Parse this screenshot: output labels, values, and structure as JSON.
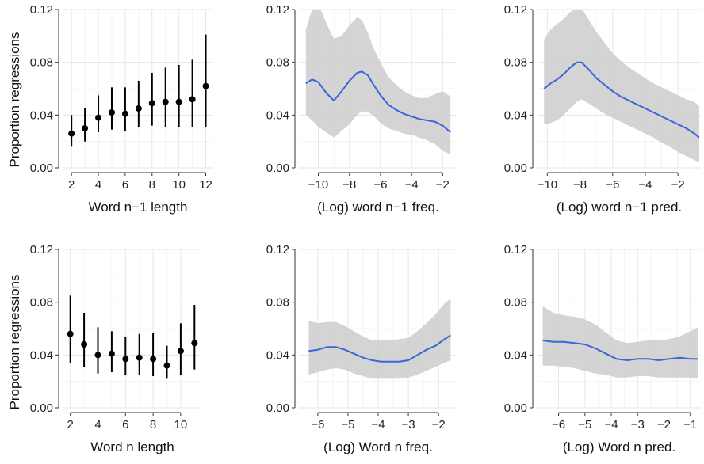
{
  "ylabel": "Proportion regressions",
  "chart_data": [
    {
      "type": "scatter",
      "xlabel": "Word n−1 length",
      "ylabel": "Proportion regressions",
      "xlim": [
        1.4,
        12.5
      ],
      "ylim": [
        0,
        0.12
      ],
      "xticks": [
        2,
        4,
        6,
        8,
        10,
        12
      ],
      "xtick_labels": [
        "2",
        "4",
        "6",
        "8",
        "10",
        "12"
      ],
      "yticks": [
        0,
        0.04,
        0.08,
        0.12
      ],
      "ytick_labels": [
        "0.00",
        "0.04",
        "0.08",
        "0.12"
      ],
      "grid": true,
      "points": [
        {
          "x": 2,
          "y": 0.026,
          "lo": 0.016,
          "hi": 0.04
        },
        {
          "x": 3,
          "y": 0.03,
          "lo": 0.02,
          "hi": 0.045
        },
        {
          "x": 4,
          "y": 0.038,
          "lo": 0.027,
          "hi": 0.055
        },
        {
          "x": 5,
          "y": 0.042,
          "lo": 0.029,
          "hi": 0.061
        },
        {
          "x": 6,
          "y": 0.041,
          "lo": 0.028,
          "hi": 0.061
        },
        {
          "x": 7,
          "y": 0.045,
          "lo": 0.031,
          "hi": 0.066
        },
        {
          "x": 8,
          "y": 0.049,
          "lo": 0.032,
          "hi": 0.072
        },
        {
          "x": 9,
          "y": 0.05,
          "lo": 0.031,
          "hi": 0.076
        },
        {
          "x": 10,
          "y": 0.05,
          "lo": 0.031,
          "hi": 0.078
        },
        {
          "x": 11,
          "y": 0.052,
          "lo": 0.031,
          "hi": 0.082
        },
        {
          "x": 12,
          "y": 0.062,
          "lo": 0.031,
          "hi": 0.101
        }
      ]
    },
    {
      "type": "line",
      "xlabel": "(Log) word n−1 freq.",
      "xlim": [
        -11.2,
        -1.1
      ],
      "ylim": [
        0,
        0.12
      ],
      "xticks": [
        -10,
        -8,
        -6,
        -4,
        -2
      ],
      "xtick_labels": [
        "−10",
        "−8",
        "−6",
        "−4",
        "−2"
      ],
      "yticks": [
        0,
        0.04,
        0.08,
        0.12
      ],
      "ytick_labels": [
        "0.00",
        "0.04",
        "0.08",
        "0.12"
      ],
      "grid": true,
      "line_color": "#3a66d8",
      "band_color": "#cccccc",
      "x": [
        -10.8,
        -10.4,
        -10.0,
        -9.5,
        -9.0,
        -8.5,
        -8.0,
        -7.5,
        -7.2,
        -6.8,
        -6.5,
        -6.0,
        -5.5,
        -5.0,
        -4.5,
        -4.0,
        -3.5,
        -3.0,
        -2.5,
        -2.0,
        -1.5
      ],
      "y": [
        0.064,
        0.067,
        0.065,
        0.057,
        0.051,
        0.058,
        0.066,
        0.072,
        0.073,
        0.07,
        0.064,
        0.055,
        0.048,
        0.044,
        0.041,
        0.039,
        0.037,
        0.036,
        0.035,
        0.032,
        0.027
      ],
      "hi": [
        0.105,
        0.12,
        0.125,
        0.11,
        0.098,
        0.1,
        0.108,
        0.114,
        0.112,
        0.102,
        0.092,
        0.08,
        0.069,
        0.063,
        0.058,
        0.055,
        0.053,
        0.053,
        0.056,
        0.058,
        0.054
      ],
      "lo": [
        0.04,
        0.036,
        0.031,
        0.027,
        0.023,
        0.028,
        0.033,
        0.04,
        0.043,
        0.042,
        0.04,
        0.034,
        0.03,
        0.028,
        0.026,
        0.025,
        0.023,
        0.021,
        0.018,
        0.013,
        0.01
      ]
    },
    {
      "type": "line",
      "xlabel": "(Log) word n−1 pred.",
      "xlim": [
        -10.6,
        -0.6
      ],
      "ylim": [
        0,
        0.12
      ],
      "xticks": [
        -10,
        -8,
        -6,
        -4,
        -2
      ],
      "xtick_labels": [
        "−10",
        "−8",
        "−6",
        "−4",
        "−2"
      ],
      "yticks": [
        0,
        0.04,
        0.08,
        0.12
      ],
      "ytick_labels": [
        "0.00",
        "0.04",
        "0.08",
        "0.12"
      ],
      "grid": true,
      "line_color": "#3a66d8",
      "band_color": "#cccccc",
      "x": [
        -10.2,
        -9.8,
        -9.4,
        -9.0,
        -8.6,
        -8.2,
        -7.9,
        -7.5,
        -7.0,
        -6.5,
        -6.0,
        -5.5,
        -5.0,
        -4.5,
        -4.0,
        -3.5,
        -3.0,
        -2.5,
        -2.0,
        -1.5,
        -1.0,
        -0.7
      ],
      "y": [
        0.06,
        0.064,
        0.067,
        0.071,
        0.076,
        0.08,
        0.08,
        0.075,
        0.068,
        0.063,
        0.058,
        0.054,
        0.051,
        0.048,
        0.045,
        0.042,
        0.039,
        0.036,
        0.033,
        0.03,
        0.026,
        0.023
      ],
      "hi": [
        0.097,
        0.105,
        0.109,
        0.113,
        0.118,
        0.121,
        0.121,
        0.113,
        0.103,
        0.095,
        0.087,
        0.081,
        0.076,
        0.072,
        0.068,
        0.064,
        0.061,
        0.058,
        0.055,
        0.052,
        0.05,
        0.047
      ],
      "lo": [
        0.033,
        0.034,
        0.036,
        0.04,
        0.045,
        0.05,
        0.052,
        0.049,
        0.045,
        0.041,
        0.038,
        0.035,
        0.032,
        0.029,
        0.026,
        0.023,
        0.019,
        0.016,
        0.012,
        0.009,
        0.006,
        0.004
      ]
    },
    {
      "type": "scatter",
      "xlabel": "Word n length",
      "ylabel": "Proportion regressions",
      "xlim": [
        1.5,
        11.5
      ],
      "ylim": [
        0,
        0.12
      ],
      "xticks": [
        2,
        4,
        6,
        8,
        10
      ],
      "xtick_labels": [
        "2",
        "4",
        "6",
        "8",
        "10"
      ],
      "yticks": [
        0,
        0.04,
        0.08,
        0.12
      ],
      "ytick_labels": [
        "0.00",
        "0.04",
        "0.08",
        "0.12"
      ],
      "grid": true,
      "points": [
        {
          "x": 2,
          "y": 0.056,
          "lo": 0.034,
          "hi": 0.085
        },
        {
          "x": 3,
          "y": 0.048,
          "lo": 0.031,
          "hi": 0.072
        },
        {
          "x": 4,
          "y": 0.04,
          "lo": 0.026,
          "hi": 0.061
        },
        {
          "x": 5,
          "y": 0.041,
          "lo": 0.027,
          "hi": 0.058
        },
        {
          "x": 6,
          "y": 0.037,
          "lo": 0.025,
          "hi": 0.054
        },
        {
          "x": 7,
          "y": 0.038,
          "lo": 0.025,
          "hi": 0.056
        },
        {
          "x": 8,
          "y": 0.037,
          "lo": 0.024,
          "hi": 0.057
        },
        {
          "x": 9,
          "y": 0.032,
          "lo": 0.022,
          "hi": 0.047
        },
        {
          "x": 10,
          "y": 0.043,
          "lo": 0.025,
          "hi": 0.064
        },
        {
          "x": 11,
          "y": 0.049,
          "lo": 0.029,
          "hi": 0.078
        }
      ]
    },
    {
      "type": "line",
      "xlabel": "(Log) Word n freq.",
      "xlim": [
        -6.6,
        -1.4
      ],
      "ylim": [
        0,
        0.12
      ],
      "xticks": [
        -6,
        -5,
        -4,
        -3,
        -2
      ],
      "xtick_labels": [
        "−6",
        "−5",
        "−4",
        "−3",
        "−2"
      ],
      "yticks": [
        0,
        0.04,
        0.08,
        0.12
      ],
      "ytick_labels": [
        "0.00",
        "0.04",
        "0.08",
        "0.12"
      ],
      "grid": true,
      "line_color": "#3a66d8",
      "band_color": "#cccccc",
      "x": [
        -6.3,
        -6.0,
        -5.7,
        -5.4,
        -5.1,
        -4.8,
        -4.5,
        -4.2,
        -3.9,
        -3.6,
        -3.3,
        -3.0,
        -2.7,
        -2.4,
        -2.1,
        -1.8,
        -1.6
      ],
      "y": [
        0.043,
        0.044,
        0.046,
        0.046,
        0.044,
        0.041,
        0.038,
        0.036,
        0.035,
        0.035,
        0.035,
        0.036,
        0.04,
        0.044,
        0.047,
        0.052,
        0.055
      ],
      "hi": [
        0.066,
        0.064,
        0.065,
        0.065,
        0.062,
        0.058,
        0.054,
        0.051,
        0.051,
        0.051,
        0.052,
        0.053,
        0.058,
        0.064,
        0.071,
        0.079,
        0.083
      ],
      "lo": [
        0.025,
        0.027,
        0.029,
        0.03,
        0.029,
        0.026,
        0.024,
        0.022,
        0.022,
        0.022,
        0.022,
        0.023,
        0.025,
        0.028,
        0.031,
        0.034,
        0.036
      ]
    },
    {
      "type": "line",
      "xlabel": "(Log) Word n pred.",
      "xlim": [
        -6.8,
        -0.6
      ],
      "ylim": [
        0,
        0.12
      ],
      "xticks": [
        -6,
        -5,
        -4,
        -3,
        -2,
        -1
      ],
      "xtick_labels": [
        "−6",
        "−5",
        "−4",
        "−3",
        "−2",
        "−1"
      ],
      "yticks": [
        0,
        0.04,
        0.08,
        0.12
      ],
      "ytick_labels": [
        "0.00",
        "0.04",
        "0.08",
        "0.12"
      ],
      "grid": true,
      "line_color": "#3a66d8",
      "band_color": "#cccccc",
      "x": [
        -6.6,
        -6.2,
        -5.8,
        -5.4,
        -5.0,
        -4.6,
        -4.2,
        -3.8,
        -3.4,
        -3.0,
        -2.6,
        -2.2,
        -1.8,
        -1.4,
        -1.0,
        -0.7
      ],
      "y": [
        0.051,
        0.05,
        0.05,
        0.049,
        0.048,
        0.045,
        0.041,
        0.037,
        0.036,
        0.037,
        0.037,
        0.036,
        0.037,
        0.038,
        0.037,
        0.037
      ],
      "hi": [
        0.077,
        0.072,
        0.07,
        0.069,
        0.067,
        0.063,
        0.057,
        0.051,
        0.049,
        0.05,
        0.051,
        0.051,
        0.052,
        0.054,
        0.058,
        0.061
      ],
      "lo": [
        0.032,
        0.032,
        0.031,
        0.03,
        0.028,
        0.026,
        0.025,
        0.023,
        0.023,
        0.024,
        0.024,
        0.023,
        0.023,
        0.023,
        0.023,
        0.022
      ]
    }
  ]
}
